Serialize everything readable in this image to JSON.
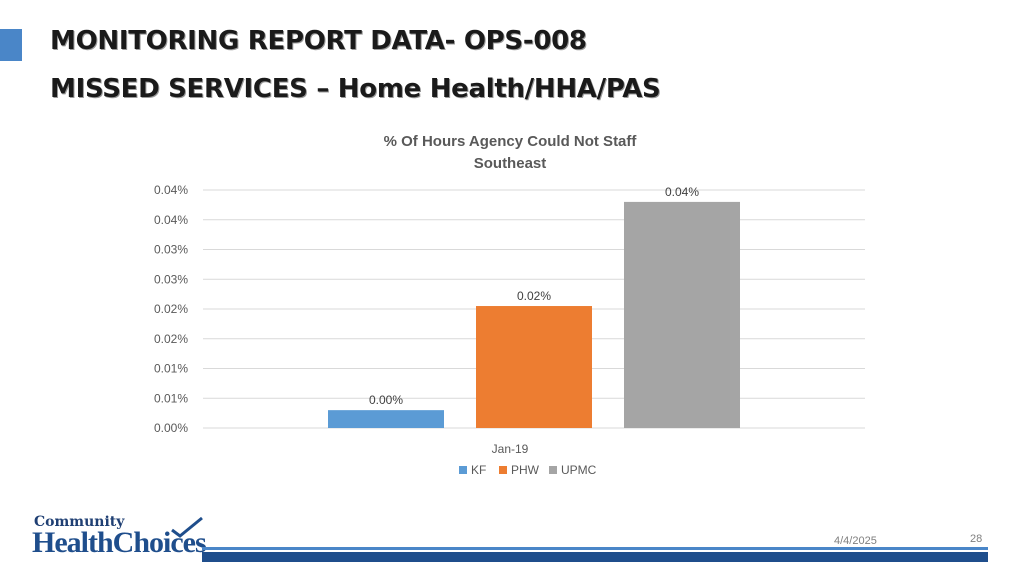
{
  "slide": {
    "title_line1": "MONITORING REPORT DATA- OPS-008",
    "title_line2": "MISSED SERVICES – Home Health/HHA/PAS",
    "date": "4/4/2025",
    "page_number": "28",
    "accent_color": "#4a86c8",
    "footer_color": "#1f4e8c"
  },
  "logo": {
    "line1": "Community",
    "line2": "HealthChoices"
  },
  "chart_data": {
    "type": "bar",
    "title": "% Of  Hours Agency Could Not Staff",
    "subtitle": "Southeast",
    "categories": [
      "Jan-19"
    ],
    "series": [
      {
        "name": "KF",
        "values": [
          0.003
        ],
        "label": "0.00%",
        "color": "#5b9bd5"
      },
      {
        "name": "PHW",
        "values": [
          0.0205
        ],
        "label": "0.02%",
        "color": "#ed7d31"
      },
      {
        "name": "UPMC",
        "values": [
          0.038
        ],
        "label": "0.04%",
        "color": "#a5a5a5"
      }
    ],
    "ylim": [
      0,
      0.04
    ],
    "y_ticks": [
      0,
      0.005,
      0.01,
      0.015,
      0.02,
      0.025,
      0.03,
      0.035,
      0.04
    ],
    "y_tick_labels": [
      "0.00%",
      "0.01%",
      "0.01%",
      "0.02%",
      "0.02%",
      "0.03%",
      "0.03%",
      "0.04%",
      "0.04%"
    ],
    "xlabel": "",
    "ylabel": "",
    "grid": true,
    "legend_position": "bottom"
  }
}
